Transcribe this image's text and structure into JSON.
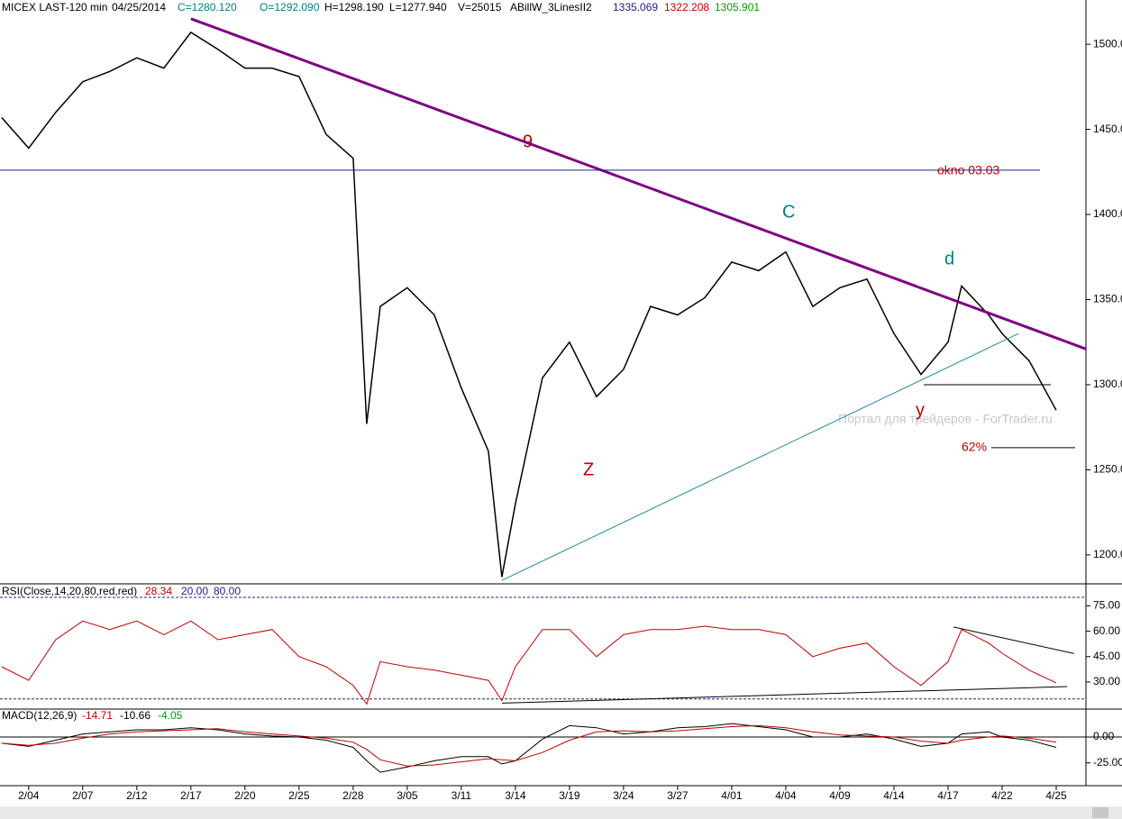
{
  "header": {
    "symbol": "MICEX LAST-120 min",
    "date": "04/25/2014",
    "close": "C=1280.120",
    "open": "O=1292.090",
    "high": "H=1298.190",
    "low": "L=1277.940",
    "volume": "V=25015",
    "indicator": "ABillW_3LinesII2",
    "ind_values": [
      "1335.069",
      "1322.208",
      "1305.901"
    ]
  },
  "annotations": {
    "wave_9": "9",
    "wave_c": "C",
    "wave_d": "d",
    "wave_y": "y",
    "wave_z": "Z",
    "window": "okno 03.03",
    "fib": "62%",
    "watermark": "Портал для трейдеров - ForTrader.ru"
  },
  "chart_data": [
    {
      "type": "line",
      "title": "MICEX LAST-120 min",
      "x": [
        -0.5,
        0,
        0.5,
        1,
        1.5,
        2,
        2.5,
        3,
        3.5,
        4,
        4.5,
        5,
        5.5,
        6,
        6.25,
        6.5,
        7,
        7.5,
        8,
        8.5,
        8.75,
        9,
        9.5,
        10,
        10.5,
        11,
        11.5,
        12,
        12.5,
        13,
        13.5,
        14,
        14.5,
        15,
        15.5,
        16,
        16.5,
        17,
        17.25,
        17.75,
        18,
        18.5,
        19
      ],
      "series": [
        {
          "name": "MICEX",
          "color": "#000000",
          "values": [
            1457,
            1439,
            1460,
            1478,
            1484,
            1492,
            1486,
            1507,
            1497,
            1486,
            1486,
            1481,
            1447,
            1433,
            1277,
            1346,
            1357,
            1341,
            1298,
            1261,
            1187,
            1230,
            1304,
            1325,
            1293,
            1309,
            1346,
            1341,
            1351,
            1372,
            1367,
            1378,
            1346,
            1357,
            1362,
            1330,
            1306,
            1325,
            1358,
            1341,
            1330,
            1314,
            1285
          ]
        }
      ],
      "lines": [
        {
          "color": "#800080",
          "x": [
            3,
            19.55
          ],
          "y": [
            1515,
            1321
          ]
        },
        {
          "color": "#1f8ca0",
          "x": [
            8.75,
            18.3
          ],
          "y": [
            1185,
            1330
          ]
        },
        {
          "color": "#202090",
          "x": [
            -0.53,
            18.7
          ],
          "y": [
            1426,
            1426
          ]
        },
        {
          "color": "#000000",
          "x": [
            16.55,
            18.9
          ],
          "y": [
            1300,
            1300
          ]
        },
        {
          "color": "#000000",
          "x": [
            17.8,
            19.35
          ],
          "y": [
            1263,
            1263
          ]
        }
      ],
      "xlim": [
        -0.53,
        19.55
      ],
      "ylim": [
        1183,
        1526
      ],
      "yticks": [
        {
          "value": 1200,
          "label": "1200.0"
        },
        {
          "value": 1250,
          "label": "1250.0"
        },
        {
          "value": 1300,
          "label": "1300.0"
        },
        {
          "value": 1350,
          "label": "1350.0"
        },
        {
          "value": 1400,
          "label": "1400.0"
        },
        {
          "value": 1450,
          "label": "1450.0"
        },
        {
          "value": 1500,
          "label": "1500.0"
        }
      ]
    },
    {
      "type": "line",
      "title": "RSI(Close,14,20,80,red,red)",
      "header_values": [
        "28.34",
        "20.00",
        "80.00"
      ],
      "x": [
        -0.5,
        0,
        0.5,
        1,
        1.5,
        2,
        2.5,
        3,
        3.5,
        4,
        4.5,
        5,
        5.5,
        6,
        6.25,
        6.5,
        7,
        7.5,
        8,
        8.5,
        8.75,
        9,
        9.5,
        10,
        10.5,
        11,
        11.5,
        12,
        12.5,
        13,
        13.5,
        14,
        14.5,
        15,
        15.5,
        16,
        16.5,
        17,
        17.25,
        17.75,
        18,
        18.5,
        19
      ],
      "series": [
        {
          "name": "RSI",
          "color": "#c00000",
          "values": [
            39,
            31,
            55,
            66,
            61,
            66,
            58,
            66,
            55,
            58,
            61,
            45,
            39,
            28,
            17,
            42,
            39,
            37,
            34,
            31,
            19,
            39,
            61,
            61,
            45,
            58,
            61,
            61,
            63,
            61,
            61,
            58,
            45,
            50,
            53,
            39,
            28,
            42,
            61,
            53,
            47,
            37,
            29.5
          ]
        }
      ],
      "levels": [
        20,
        80
      ],
      "level_color": "#202090",
      "lines": [
        {
          "color": "#000000",
          "x": [
            8.75,
            19.2
          ],
          "y": [
            17.5,
            27.3
          ]
        },
        {
          "color": "#000000",
          "x": [
            17.1,
            19.33
          ],
          "y": [
            62.5,
            46.8
          ]
        }
      ],
      "xlim": [
        -0.53,
        19.55
      ],
      "ylim": [
        14,
        88
      ],
      "yticks": [
        {
          "value": 30,
          "label": "30.00"
        },
        {
          "value": 45,
          "label": "45.00"
        },
        {
          "value": 60,
          "label": "60.00"
        },
        {
          "value": 75,
          "label": "75.00"
        }
      ]
    },
    {
      "type": "line",
      "title": "MACD(12,26,9)",
      "header_values": [
        "-14.71",
        "-10.66",
        "-4.05"
      ],
      "x": [
        -0.5,
        0,
        0.5,
        1,
        1.5,
        2,
        2.5,
        3,
        3.5,
        4,
        4.5,
        5,
        5.5,
        6,
        6.25,
        6.5,
        7,
        7.5,
        8,
        8.5,
        8.75,
        9,
        9.5,
        10,
        10.5,
        11,
        11.5,
        12,
        12.5,
        13,
        13.5,
        14,
        14.5,
        15,
        15.5,
        16,
        16.5,
        17,
        17.25,
        17.75,
        18,
        18.5,
        19
      ],
      "series": [
        {
          "name": "MACD",
          "color": "#000000",
          "values": [
            -6,
            -9,
            -3,
            3,
            5,
            7,
            7,
            9,
            7,
            3,
            1,
            0,
            -3,
            -10,
            -23,
            -34,
            -29,
            -23,
            -19,
            -19,
            -26,
            -23,
            -2,
            11,
            9,
            3,
            5,
            9,
            10,
            13,
            10,
            7,
            0,
            0,
            3,
            -2,
            -9,
            -6,
            3,
            5,
            0,
            -3,
            -10
          ]
        },
        {
          "name": "Signal",
          "color": "#c00000",
          "values": [
            -6,
            -8,
            -6,
            -1,
            3,
            5,
            6,
            7,
            8,
            5,
            3,
            1,
            -1,
            -5,
            -12,
            -22,
            -28,
            -27,
            -24,
            -21,
            -22,
            -23,
            -15,
            -3,
            5,
            6,
            5,
            6,
            8,
            10,
            11,
            9,
            5,
            2,
            1,
            0,
            -4,
            -6,
            -3,
            0,
            1,
            -1,
            -5
          ]
        }
      ],
      "lines": [],
      "xlim": [
        -0.53,
        19.55
      ],
      "ylim": [
        -47,
        27
      ],
      "yticks": [
        {
          "value": -25,
          "label": "-25.00"
        },
        {
          "value": 0,
          "label": "0.00"
        }
      ],
      "xticks": [
        {
          "value": 0,
          "label": "2/04"
        },
        {
          "value": 1,
          "label": "2/07"
        },
        {
          "value": 2,
          "label": "2/12"
        },
        {
          "value": 3,
          "label": "2/17"
        },
        {
          "value": 4,
          "label": "2/20"
        },
        {
          "value": 5,
          "label": "2/25"
        },
        {
          "value": 6,
          "label": "2/28"
        },
        {
          "value": 7,
          "label": "3/05"
        },
        {
          "value": 8,
          "label": "3/11"
        },
        {
          "value": 9,
          "label": "3/14"
        },
        {
          "value": 10,
          "label": "3/19"
        },
        {
          "value": 11,
          "label": "3/24"
        },
        {
          "value": 12,
          "label": "3/27"
        },
        {
          "value": 13,
          "label": "4/01"
        },
        {
          "value": 14,
          "label": "4/04"
        },
        {
          "value": 15,
          "label": "4/09"
        },
        {
          "value": 16,
          "label": "4/14"
        },
        {
          "value": 17,
          "label": "4/17"
        },
        {
          "value": 18,
          "label": "4/22"
        },
        {
          "value": 19,
          "label": "4/25"
        }
      ]
    }
  ]
}
